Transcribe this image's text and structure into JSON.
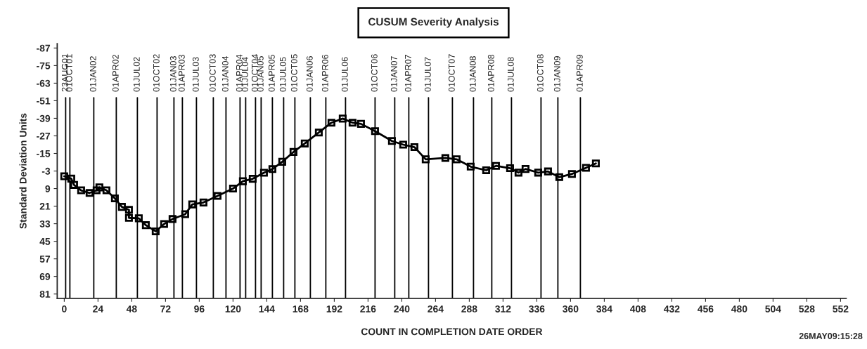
{
  "chart_data": {
    "type": "line",
    "title": "CUSUM Severity Analysis",
    "xlabel": "COUNT IN COMPLETION DATE ORDER",
    "ylabel": "Standard Deviation Units",
    "annotations": [
      "26MAY09:15:28"
    ],
    "xlim": [
      -5,
      556
    ],
    "xticks": [
      0,
      24,
      48,
      72,
      96,
      120,
      144,
      168,
      192,
      216,
      240,
      264,
      288,
      312,
      336,
      360,
      384,
      408,
      432,
      456,
      480,
      504,
      528,
      552
    ],
    "ylim": [
      84,
      -90
    ],
    "yticks": [
      -87,
      -75,
      -63,
      -51,
      -39,
      -27,
      -15,
      -3,
      9,
      21,
      33,
      45,
      57,
      69,
      81
    ],
    "grid": false,
    "legend": false,
    "marker": "square",
    "line_style": "solid",
    "series": [
      {
        "color": "#000000",
        "x": [
          0,
          5,
          7,
          12,
          18,
          23,
          25,
          30,
          36,
          41,
          46,
          46,
          53,
          58,
          65,
          71,
          77,
          86,
          91,
          99,
          109,
          120,
          127,
          134,
          142,
          148,
          155,
          163,
          171,
          181,
          190,
          198,
          205,
          211,
          221,
          233,
          241,
          249,
          257,
          271,
          279,
          289,
          300,
          307,
          317,
          323,
          328,
          337,
          344,
          352,
          361,
          371,
          378
        ],
        "values": [
          0.6,
          2.2,
          6.5,
          10.2,
          12,
          10.2,
          8.2,
          10.2,
          15.7,
          21.5,
          23.5,
          29,
          29.3,
          34,
          38.2,
          33.2,
          29.8,
          26.5,
          19.8,
          18.5,
          14,
          9,
          4,
          2.3,
          -1.8,
          -4.3,
          -9.3,
          -16,
          -21.8,
          -29.3,
          -36,
          -38.8,
          -36,
          -35.2,
          -30.2,
          -23.5,
          -21,
          -19.3,
          -11,
          -11.9,
          -11,
          -6,
          -3.5,
          -6.5,
          -4.9,
          -1.9,
          -4.4,
          -1.9,
          -2.7,
          1.2,
          -1,
          -5.2,
          -8.2
        ]
      }
    ],
    "ref_lines": [
      {
        "axis": "x",
        "value": 1,
        "label": "23AUG01"
      },
      {
        "axis": "x",
        "value": 4,
        "label": "01OCT01"
      },
      {
        "axis": "x",
        "value": 21,
        "label": "01JAN02"
      },
      {
        "axis": "x",
        "value": 37,
        "label": "01APR02"
      },
      {
        "axis": "x",
        "value": 52,
        "label": "01JUL02"
      },
      {
        "axis": "x",
        "value": 66,
        "label": "01OCT02"
      },
      {
        "axis": "x",
        "value": 78,
        "label": "01JAN03"
      },
      {
        "axis": "x",
        "value": 84,
        "label": "01APR03"
      },
      {
        "axis": "x",
        "value": 94,
        "label": "01JUL03"
      },
      {
        "axis": "x",
        "value": 106,
        "label": "01OCT03"
      },
      {
        "axis": "x",
        "value": 115,
        "label": "01JAN04"
      },
      {
        "axis": "x",
        "value": 125,
        "label": "01APR04"
      },
      {
        "axis": "x",
        "value": 129,
        "label": "01JUL04"
      },
      {
        "axis": "x",
        "value": 136,
        "label": "01OCT04"
      },
      {
        "axis": "x",
        "value": 140,
        "label": "01JAN05"
      },
      {
        "axis": "x",
        "value": 148,
        "label": "01APR05"
      },
      {
        "axis": "x",
        "value": 156,
        "label": "01JUL05"
      },
      {
        "axis": "x",
        "value": 164,
        "label": "01OCT05"
      },
      {
        "axis": "x",
        "value": 175,
        "label": "01JAN06"
      },
      {
        "axis": "x",
        "value": 186,
        "label": "01APR06"
      },
      {
        "axis": "x",
        "value": 200,
        "label": "01JUL06"
      },
      {
        "axis": "x",
        "value": 221,
        "label": "01OCT06"
      },
      {
        "axis": "x",
        "value": 235,
        "label": "01JAN07"
      },
      {
        "axis": "x",
        "value": 245,
        "label": "01APR07"
      },
      {
        "axis": "x",
        "value": 259,
        "label": "01JUL07"
      },
      {
        "axis": "x",
        "value": 276,
        "label": "01OCT07"
      },
      {
        "axis": "x",
        "value": 291,
        "label": "01JAN08"
      },
      {
        "axis": "x",
        "value": 304,
        "label": "01APR08"
      },
      {
        "axis": "x",
        "value": 318,
        "label": "01JUL08"
      },
      {
        "axis": "x",
        "value": 339,
        "label": "01OCT08"
      },
      {
        "axis": "x",
        "value": 351,
        "label": "01JAN09"
      },
      {
        "axis": "x",
        "value": 367,
        "label": "01APR09"
      }
    ]
  }
}
